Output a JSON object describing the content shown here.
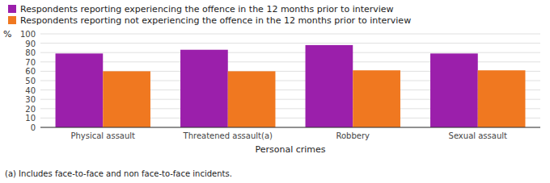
{
  "chart_data": {
    "type": "bar",
    "categories": [
      "Physical assault",
      "Threatened assault(a)",
      "Robbery",
      "Sexual assault"
    ],
    "series": [
      {
        "name": "Respondents reporting experiencing the offence in the 12 months prior to interview",
        "color": "#9B1FAB",
        "values": [
          79,
          83,
          88,
          79
        ]
      },
      {
        "name": "Respondents reporting not experiencing the offence in the 12 months prior to interview",
        "color": "#F07820",
        "values": [
          60,
          60,
          61,
          61
        ]
      }
    ],
    "xlabel": "Personal crimes",
    "ylabel": "%",
    "footnote": "(a) Includes face-to-face and non face-to-face incidents.",
    "ylim": [
      0,
      100
    ],
    "yticks": [
      0,
      10,
      20,
      30,
      40,
      50,
      60,
      70,
      80,
      90,
      100
    ],
    "grid": true,
    "legend": "top"
  }
}
